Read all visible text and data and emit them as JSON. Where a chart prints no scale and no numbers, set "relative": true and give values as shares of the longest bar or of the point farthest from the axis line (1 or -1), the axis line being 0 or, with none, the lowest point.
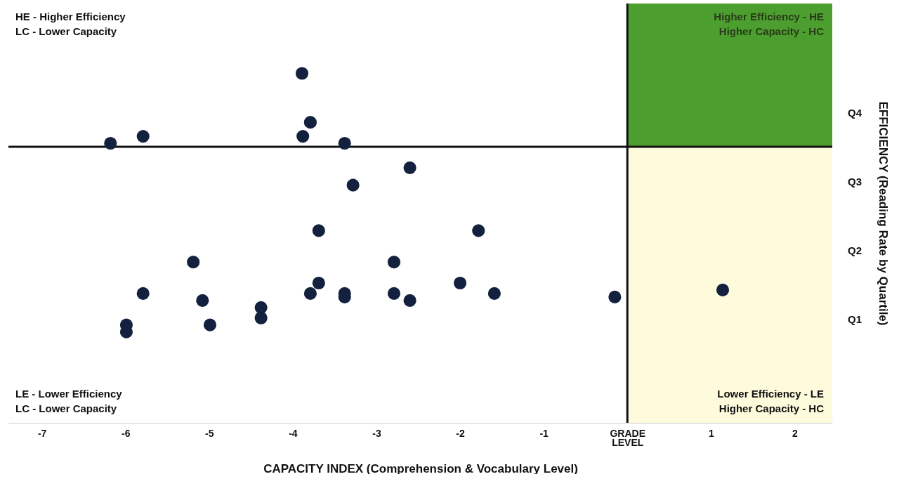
{
  "chart_data": {
    "type": "scatter",
    "relative": true,
    "xlabel": "CAPACITY INDEX (Comprehension & Vocabulary Level)",
    "ylabel": "EFFICIENCY (Reading Rate by Quartile)",
    "x": [
      -3.89,
      -3.79,
      -3.88,
      -6.18,
      -5.79,
      -3.38,
      -2.6,
      -3.28,
      -3.69,
      -1.78,
      -5.19,
      -2.79,
      -3.69,
      -2.0,
      -5.79,
      -3.79,
      -3.38,
      -3.38,
      -2.79,
      -1.59,
      1.14,
      -5.08,
      -2.6,
      -0.15,
      -4.38,
      -4.38,
      -4.99,
      -5.99,
      -5.99
    ],
    "series": [
      {
        "color": "#13213f",
        "values": [
          1,
          0.86,
          0.82,
          0.8,
          0.82,
          0.8,
          0.73,
          0.68,
          0.55,
          0.55,
          0.46,
          0.46,
          0.4,
          0.4,
          0.37,
          0.37,
          0.37,
          0.36,
          0.37,
          0.37,
          0.38,
          0.35,
          0.35,
          0.36,
          0.33,
          0.3,
          0.28,
          0.28,
          0.26
        ]
      }
    ],
    "marker": "circle",
    "xlim": [
      -7.4,
      2.45
    ],
    "xticks": [
      -7,
      -6,
      -5,
      -4,
      -3,
      -2,
      -1,
      {
        "value": 0,
        "label": "GRADE LEVEL"
      },
      1,
      2
    ],
    "grid": false,
    "ref_lines": [
      {
        "axis": "x",
        "value": 0,
        "color": "#111111"
      },
      {
        "axis": "y",
        "value": 0.79,
        "color": "#111111"
      }
    ],
    "bands": [
      {
        "axis": "x",
        "from": 0,
        "to": 2.45,
        "color": "#fdfbdc"
      },
      {
        "axis": "y",
        "from": 0.79,
        "to": 1.2,
        "color": "#4c9f2f"
      }
    ],
    "annotations": [
      "HE - Higher Efficiency\nLC - Lower Capacity",
      "Higher Efficiency - HE\nHigher Capacity - HC",
      "LE - Lower Efficiency\nLC - Lower Capacity",
      "Lower Efficiency - LE\nHigher Capacity - HC",
      "Q1",
      "Q2",
      "Q3",
      "Q4"
    ]
  }
}
